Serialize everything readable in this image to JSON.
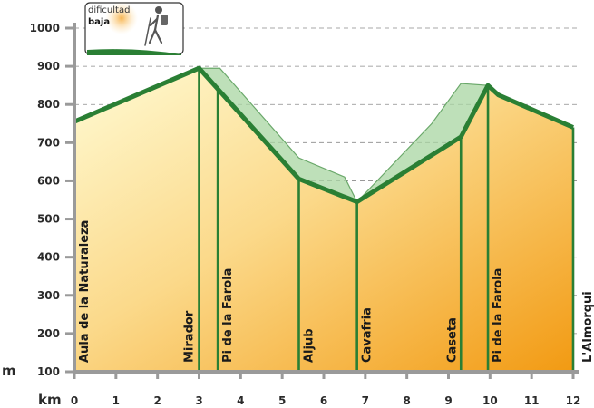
{
  "chart_data": {
    "type": "area",
    "xlabel": "km",
    "ylabel": "m",
    "xlim": [
      0,
      12
    ],
    "ylim": [
      100,
      1000
    ],
    "x_ticks": [
      0,
      1,
      2,
      3,
      4,
      5,
      6,
      7,
      8,
      9,
      10,
      11,
      12
    ],
    "y_ticks": [
      100,
      200,
      300,
      400,
      500,
      600,
      700,
      800,
      900,
      1000
    ],
    "grid": "horizontal dashed",
    "profile": {
      "x": [
        0,
        3,
        5.4,
        6.8,
        9.3,
        9.95,
        10.2,
        12
      ],
      "y": [
        755,
        895,
        605,
        545,
        715,
        850,
        825,
        740
      ]
    },
    "alternate_route": {
      "x": [
        3,
        3.5,
        5.4,
        6.5,
        6.8,
        8.6,
        9.3,
        9.95
      ],
      "y": [
        895,
        895,
        660,
        610,
        545,
        750,
        855,
        850
      ]
    },
    "waypoints": [
      {
        "x": 0,
        "label": "Aula de la Naturaleza"
      },
      {
        "x": 3,
        "label": "Mirador"
      },
      {
        "x": 3.45,
        "label": "Pi de la Farola"
      },
      {
        "x": 5.4,
        "label": "Aljub"
      },
      {
        "x": 6.8,
        "label": "Cavafria"
      },
      {
        "x": 9.3,
        "label": "Caseta"
      },
      {
        "x": 9.95,
        "label": "Pi de la Farola"
      },
      {
        "x": 12,
        "label": "L'Almorqui"
      }
    ],
    "colors": {
      "profile_line": "#2a7f34",
      "alternate_fill": "#a8d5a2",
      "alternate_stroke": "#6aa86a",
      "fill_light": "#fff7c6",
      "fill_dark": "#f29a12",
      "axis": "#9a9a9a"
    }
  },
  "badge": {
    "line1": "dificultad",
    "line2": "baja",
    "icon": "hiker-icon"
  }
}
